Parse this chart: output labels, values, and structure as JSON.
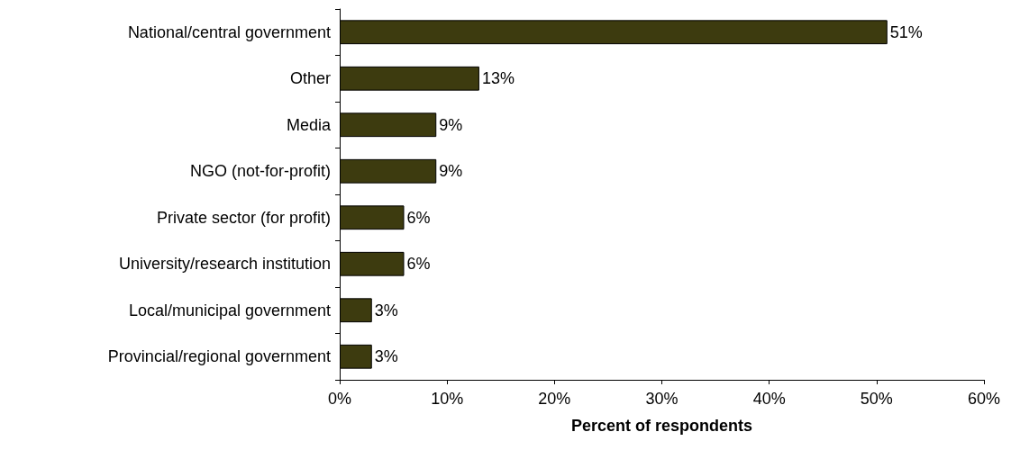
{
  "chart_data": {
    "type": "bar",
    "orientation": "horizontal",
    "categories": [
      "National/central government",
      "Other",
      "Media",
      "NGO (not-for-profit)",
      "Private sector (for profit)",
      "University/research institution",
      "Local/municipal government",
      "Provincial/regional government"
    ],
    "values": [
      51,
      13,
      9,
      9,
      6,
      6,
      3,
      3
    ],
    "value_labels": [
      "51%",
      "13%",
      "9%",
      "9%",
      "6%",
      "6%",
      "3%",
      "3%"
    ],
    "color": "#3d3b0f",
    "xlabel": "Percent of respondents",
    "xlim": [
      0,
      60
    ],
    "xticks": [
      {
        "value": 0,
        "label": "0%"
      },
      {
        "value": 10,
        "label": "10%"
      },
      {
        "value": 20,
        "label": "20%"
      },
      {
        "value": 30,
        "label": "30%"
      },
      {
        "value": 40,
        "label": "40%"
      },
      {
        "value": 50,
        "label": "50%"
      },
      {
        "value": 60,
        "label": "60%"
      }
    ]
  }
}
